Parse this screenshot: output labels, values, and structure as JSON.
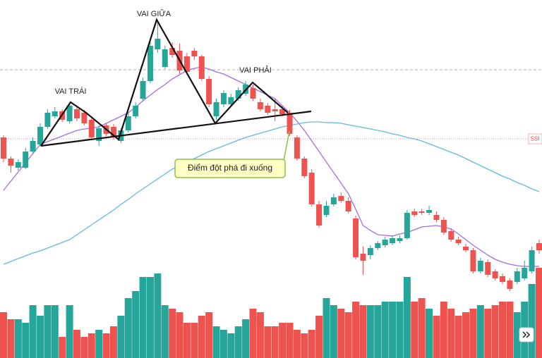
{
  "chart_data": {
    "type": "candlestick",
    "symbol": "SSI",
    "annotations": [
      "VAI TRÁI",
      "VAI GIỮA",
      "VAI PHẢI",
      "Điểm đột phá đi xuống"
    ],
    "color_up": "#26a69a",
    "color_down": "#ef5350",
    "ylim": [
      0,
      420
    ],
    "open": [
      225,
      195,
      182,
      182,
      205,
      215,
      240,
      255,
      262,
      248,
      265,
      260,
      250,
      220,
      242,
      240,
      220,
      235,
      255,
      280,
      305,
      350,
      325,
      352,
      348,
      340,
      348,
      340,
      308,
      255,
      272,
      272,
      280,
      287,
      295,
      275,
      270,
      265,
      265,
      260,
      225,
      195,
      175,
      130,
      115,
      130,
      142,
      135,
      110,
      60,
      58,
      68,
      72,
      75,
      78,
      82,
      120,
      120,
      118,
      115,
      108,
      92,
      80,
      70,
      65,
      35,
      48,
      35,
      28,
      22,
      20,
      25,
      35,
      75
    ],
    "close": [
      195,
      185,
      190,
      205,
      220,
      240,
      260,
      262,
      250,
      270,
      252,
      245,
      225,
      238,
      230,
      225,
      235,
      255,
      270,
      305,
      355,
      365,
      350,
      342,
      320,
      318,
      340,
      308,
      272,
      275,
      288,
      282,
      292,
      300,
      280,
      265,
      260,
      262,
      258,
      230,
      195,
      170,
      130,
      100,
      128,
      140,
      135,
      120,
      55,
      50,
      68,
      75,
      80,
      82,
      82,
      118,
      115,
      118,
      122,
      108,
      90,
      80,
      75,
      65,
      35,
      50,
      30,
      25,
      20,
      10,
      35,
      40,
      65,
      65
    ],
    "high": [
      228,
      198,
      194,
      210,
      225,
      245,
      265,
      268,
      265,
      275,
      270,
      264,
      255,
      242,
      245,
      244,
      238,
      260,
      275,
      310,
      360,
      392,
      355,
      360,
      358,
      345,
      352,
      342,
      312,
      280,
      292,
      287,
      296,
      305,
      300,
      280,
      274,
      280,
      270,
      264,
      228,
      198,
      180,
      135,
      135,
      145,
      147,
      140,
      114,
      70,
      72,
      78,
      84,
      86,
      86,
      122,
      124,
      124,
      128,
      120,
      112,
      96,
      84,
      74,
      68,
      54,
      52,
      38,
      32,
      25,
      40,
      50,
      70,
      80
    ],
    "low": [
      190,
      175,
      178,
      180,
      202,
      212,
      237,
      252,
      247,
      245,
      248,
      242,
      222,
      213,
      227,
      222,
      217,
      232,
      252,
      277,
      302,
      345,
      322,
      338,
      315,
      314,
      335,
      305,
      268,
      250,
      268,
      269,
      277,
      284,
      277,
      262,
      257,
      248,
      255,
      227,
      192,
      167,
      127,
      97,
      112,
      127,
      132,
      117,
      52,
      30,
      52,
      65,
      69,
      72,
      75,
      80,
      112,
      115,
      115,
      105,
      87,
      77,
      72,
      62,
      32,
      32,
      27,
      22,
      17,
      7,
      17,
      22,
      32,
      60
    ],
    "series": [
      {
        "color": "#a46de0",
        "values": [
          150,
          163,
          176,
          189,
          202,
          215,
          219,
          223,
          227,
          231,
          235,
          237,
          238,
          240,
          245,
          250,
          255,
          260,
          268,
          277,
          285,
          293,
          300,
          308,
          314,
          320,
          323,
          325,
          322,
          318,
          315,
          310,
          305,
          300,
          295,
          290,
          285,
          280,
          270,
          260,
          248,
          235,
          220,
          205,
          190,
          175,
          160,
          145,
          123,
          100,
          93,
          87,
          86,
          85,
          88,
          90,
          94,
          98,
          99,
          100,
          98,
          95,
          88,
          80,
          72,
          65,
          58,
          52,
          48,
          45,
          43,
          42,
          42,
          42
        ]
      },
      {
        "color": "#63b8e3",
        "values": [
          45,
          49,
          53,
          57,
          61,
          64,
          68,
          72,
          76,
          80,
          87,
          94,
          101,
          108,
          115,
          122,
          130,
          137,
          145,
          152,
          159,
          166,
          173,
          180,
          185,
          190,
          195,
          200,
          205,
          209,
          213,
          217,
          221,
          225,
          228,
          231,
          234,
          237,
          240,
          242,
          244,
          246,
          247,
          247,
          246,
          246,
          245,
          243,
          241,
          239,
          237,
          235,
          233,
          230,
          228,
          225,
          223,
          220,
          216,
          212,
          208,
          204,
          200,
          195,
          190,
          185,
          180,
          175,
          170,
          166,
          161,
          157,
          152,
          148
        ]
      }
    ],
    "volume": {
      "ylim": [
        0,
        130
      ],
      "values": [
        65,
        55,
        55,
        50,
        75,
        60,
        75,
        75,
        30,
        75,
        40,
        30,
        35,
        40,
        35,
        45,
        60,
        85,
        95,
        115,
        115,
        120,
        75,
        70,
        65,
        50,
        50,
        60,
        65,
        45,
        40,
        35,
        45,
        55,
        70,
        65,
        45,
        45,
        50,
        50,
        40,
        35,
        40,
        60,
        85,
        75,
        70,
        65,
        80,
        75,
        75,
        75,
        80,
        80,
        80,
        115,
        80,
        85,
        70,
        60,
        80,
        70,
        60,
        65,
        70,
        75,
        70,
        75,
        80,
        80,
        65,
        80,
        105,
        128
      ]
    }
  }
}
